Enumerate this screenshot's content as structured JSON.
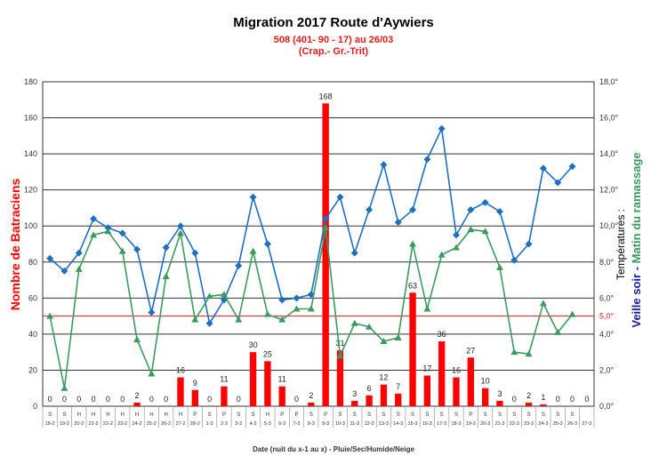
{
  "chart_data": {
    "type": "bar+line",
    "title": "Migration  2017 Route d'Aywiers",
    "subtitle_lines": [
      "508 (401- 90 - 17) au 26/03",
      "(Crap.- Gr.-Trit)"
    ],
    "xlabel": "Date (nuit du x-1 au x)  - Pluie/Sec/Humide/Neige",
    "ylabel_left": "Nombre de Batraciens",
    "ylabel_right_prefix": "Températures :",
    "ylabel_right_blue": "Veille soir",
    "ylabel_right_sep": " - ",
    "ylabel_right_green": "Matin du ramassage",
    "ylim_left": [
      0,
      180
    ],
    "ylim_right": [
      0,
      18
    ],
    "left_ticks": [
      "0",
      "20",
      "40",
      "60",
      "80",
      "100",
      "120",
      "140",
      "160",
      "180"
    ],
    "right_ticks": [
      "0,0°",
      "2,0°",
      "4,0°",
      "6,0°",
      "8,0°",
      "10,0°",
      "12,0°",
      "14,0°",
      "16,0°",
      "18,0°"
    ],
    "reference_line": {
      "value": 5.0,
      "label": "5,0°",
      "color": "#e31c1c"
    },
    "grid": true,
    "categories": [
      "18-2",
      "19-2",
      "20-2",
      "21-2",
      "22-2",
      "23-2",
      "24-2",
      "25-2",
      "26-2",
      "27-2",
      "28-2",
      "1-3",
      "2-3",
      "3-3",
      "4-3",
      "5-3",
      "6-3",
      "7-3",
      "8-3",
      "9-3",
      "10-3",
      "11-3",
      "12-3",
      "13-3",
      "14-3",
      "15-3",
      "16-3",
      "17-3",
      "18-3",
      "19-3",
      "20-3",
      "21-3",
      "22-3",
      "23-3",
      "24-3",
      "25-3",
      "26-3",
      "27-3"
    ],
    "weather": [
      "S",
      "S",
      "H",
      "H",
      "H",
      "H",
      "H",
      "H",
      "H",
      "H",
      "P",
      "S",
      "P",
      "S",
      "S",
      "H",
      "P",
      "P",
      "S",
      "P",
      "S",
      "S",
      "S",
      "S",
      "S",
      "S",
      "S",
      "S",
      "S",
      "P",
      "S",
      "S",
      "S",
      "S",
      "S",
      "S",
      "S",
      ""
    ],
    "series": [
      {
        "kind": "bar",
        "axis": "left",
        "color": "#ff0000",
        "values": [
          0,
          0,
          0,
          0,
          0,
          0,
          2,
          0,
          0,
          16,
          9,
          0,
          11,
          0,
          30,
          25,
          11,
          0,
          2,
          168,
          31,
          3,
          6,
          12,
          7,
          63,
          17,
          36,
          16,
          27,
          10,
          3,
          0,
          2,
          1,
          0,
          0,
          0
        ]
      },
      {
        "kind": "line",
        "axis": "right",
        "color": "#1f6fbf",
        "marker": "diamond",
        "values": [
          8.2,
          7.5,
          8.5,
          10.4,
          9.9,
          9.6,
          8.7,
          5.2,
          8.8,
          10.0,
          8.5,
          4.6,
          5.9,
          7.8,
          11.6,
          9.0,
          5.9,
          6.0,
          6.2,
          10.4,
          11.6,
          8.5,
          10.9,
          13.4,
          10.2,
          10.9,
          13.7,
          15.4,
          9.5,
          10.9,
          11.3,
          10.8,
          8.1,
          9.0,
          13.2,
          12.4,
          13.3,
          null
        ]
      },
      {
        "kind": "line",
        "axis": "right",
        "color": "#3c9a5f",
        "marker": "triangle",
        "values": [
          5.0,
          1.0,
          7.6,
          9.5,
          9.7,
          8.6,
          3.7,
          1.8,
          7.2,
          9.6,
          4.8,
          6.1,
          6.2,
          4.8,
          8.6,
          5.1,
          4.8,
          5.4,
          5.4,
          9.9,
          2.8,
          4.6,
          4.4,
          3.6,
          3.8,
          9.0,
          5.4,
          8.4,
          8.8,
          9.8,
          9.7,
          7.7,
          3.0,
          2.9,
          5.7,
          4.1,
          5.1,
          null
        ]
      }
    ]
  }
}
